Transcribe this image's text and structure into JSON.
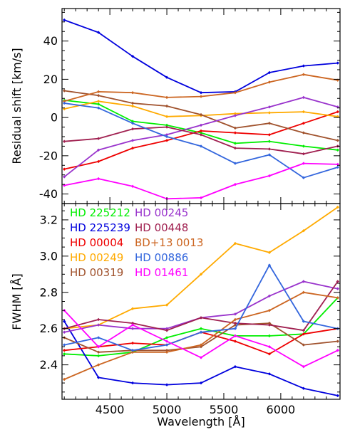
{
  "chart_data": [
    {
      "type": "line",
      "ylabel": "Residual shift [km/s]",
      "xlim": [
        4080,
        6520
      ],
      "ylim": [
        -45,
        57
      ],
      "yticks": [
        -40,
        -20,
        0,
        20,
        40
      ],
      "x": [
        4100,
        4400,
        4700,
        5000,
        5300,
        5600,
        5900,
        6200,
        6500
      ],
      "series": [
        {
          "name": "HD 225212",
          "color": "#00ee00",
          "values": [
            9,
            7,
            -2,
            -4,
            -8,
            -13.5,
            -12.5,
            -15,
            -17
          ]
        },
        {
          "name": "HD 225239",
          "color": "#0000dd",
          "values": [
            51,
            44.5,
            32,
            21,
            13,
            13.5,
            23.5,
            27,
            28.5
          ]
        },
        {
          "name": "HD 00004",
          "color": "#ee0000",
          "values": [
            -27,
            -23,
            -16,
            -12,
            -7,
            -8,
            -9,
            -3,
            3
          ]
        },
        {
          "name": "HD 00249",
          "color": "#ffaa00",
          "values": [
            4.5,
            8.5,
            6,
            0.5,
            1,
            2,
            2.5,
            3,
            0.5
          ]
        },
        {
          "name": "HD 00319",
          "color": "#a0522d",
          "values": [
            14,
            11.5,
            7.5,
            6,
            1.5,
            -5.5,
            -3,
            -8,
            -12
          ]
        },
        {
          "name": "HD 00245",
          "color": "#9933cc",
          "values": [
            -31,
            -17,
            -12,
            -9,
            -4,
            1,
            5.5,
            10.5,
            5.5
          ]
        },
        {
          "name": "HD 00448",
          "color": "#a02050",
          "values": [
            -12.5,
            -11,
            -6,
            -5,
            -9,
            -16,
            -16.5,
            -19,
            -15
          ]
        },
        {
          "name": "BD+13 0013",
          "color": "#cc6622",
          "values": [
            8.5,
            13.5,
            13,
            10.5,
            11,
            13,
            18.5,
            22.5,
            19.5
          ]
        },
        {
          "name": "HD 00886",
          "color": "#3366dd",
          "values": [
            7.5,
            5,
            -3,
            -10,
            -15,
            -24,
            -19.5,
            -31.5,
            -26
          ]
        },
        {
          "name": "HD 01461",
          "color": "#ff00ff",
          "values": [
            -35.5,
            -32,
            -36,
            -42.5,
            -42,
            -35,
            -30.5,
            -24,
            -24.5
          ]
        }
      ]
    },
    {
      "type": "line",
      "xlabel": "Wavelength [Å]",
      "ylabel": "FWHM [Å]",
      "xlim": [
        4080,
        6520
      ],
      "ylim": [
        2.21,
        3.29
      ],
      "yticks": [
        2.4,
        2.6,
        2.8,
        3.0,
        3.2
      ],
      "yticklabels": [
        "2.4",
        "2.6",
        "2.8",
        "3.0",
        "3.2"
      ],
      "xticks": [
        4500,
        5000,
        5500,
        6000
      ],
      "x": [
        4100,
        4400,
        4700,
        5000,
        5300,
        5600,
        5900,
        6200,
        6500
      ],
      "series": [
        {
          "name": "HD 225212",
          "color": "#00ee00",
          "values": [
            2.46,
            2.45,
            2.47,
            2.55,
            2.6,
            2.56,
            2.56,
            2.57,
            2.77
          ]
        },
        {
          "name": "HD 225239",
          "color": "#0000dd",
          "values": [
            2.64,
            2.33,
            2.3,
            2.29,
            2.3,
            2.39,
            2.35,
            2.27,
            2.23
          ]
        },
        {
          "name": "HD 00004",
          "color": "#ee0000",
          "values": [
            2.48,
            2.5,
            2.52,
            2.51,
            2.58,
            2.53,
            2.46,
            2.57,
            2.6
          ]
        },
        {
          "name": "HD 00249",
          "color": "#ffaa00",
          "values": [
            2.6,
            2.62,
            2.71,
            2.73,
            2.9,
            3.07,
            3.02,
            3.14,
            3.27
          ]
        },
        {
          "name": "HD 00319",
          "color": "#a0522d",
          "values": [
            2.55,
            2.47,
            2.48,
            2.48,
            2.5,
            2.62,
            2.63,
            2.51,
            2.53
          ]
        },
        {
          "name": "HD 00245",
          "color": "#9933cc",
          "values": [
            2.58,
            2.62,
            2.6,
            2.6,
            2.66,
            2.68,
            2.78,
            2.86,
            2.82
          ]
        },
        {
          "name": "HD 00448",
          "color": "#a02050",
          "values": [
            2.6,
            2.65,
            2.63,
            2.59,
            2.66,
            2.63,
            2.62,
            2.59,
            2.86
          ]
        },
        {
          "name": "BD+13 0013",
          "color": "#cc6622",
          "values": [
            2.32,
            2.4,
            2.47,
            2.47,
            2.51,
            2.65,
            2.7,
            2.8,
            2.77
          ]
        },
        {
          "name": "HD 00886",
          "color": "#3366dd",
          "values": [
            2.51,
            2.55,
            2.48,
            2.51,
            2.58,
            2.6,
            2.95,
            2.64,
            2.6
          ]
        },
        {
          "name": "HD 01461",
          "color": "#ff00ff",
          "values": [
            2.7,
            2.5,
            2.62,
            2.53,
            2.44,
            2.56,
            2.5,
            2.39,
            2.48
          ]
        }
      ],
      "legend": {
        "placement": "top-left",
        "columns": 2,
        "entries": [
          {
            "label": "HD 225212",
            "color": "#00ee00"
          },
          {
            "label": "HD 00245",
            "color": "#9933cc"
          },
          {
            "label": "HD 225239",
            "color": "#0000dd"
          },
          {
            "label": "HD 00448",
            "color": "#a02050"
          },
          {
            "label": "HD 00004",
            "color": "#ee0000"
          },
          {
            "label": "BD+13 0013",
            "color": "#cc6622"
          },
          {
            "label": "HD 00249",
            "color": "#ffaa00"
          },
          {
            "label": "HD 00886",
            "color": "#3366dd"
          },
          {
            "label": "HD 00319",
            "color": "#a0522d"
          },
          {
            "label": "HD 01461",
            "color": "#ff00ff"
          }
        ]
      }
    }
  ]
}
